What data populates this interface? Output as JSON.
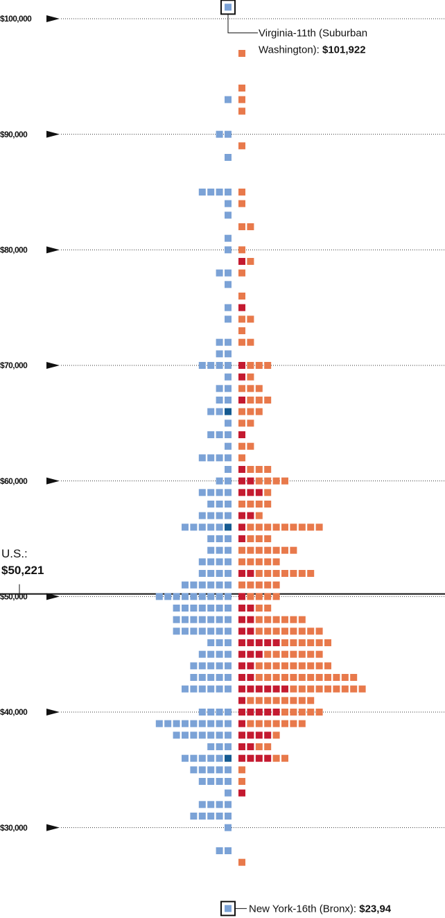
{
  "chart_data": {
    "type": "dot-stack",
    "ylim": [
      22000,
      102000
    ],
    "yticks": [
      {
        "value": 100000,
        "label": "$100,000"
      },
      {
        "value": 90000,
        "label": "$90,000"
      },
      {
        "value": 80000,
        "label": "$80,000"
      },
      {
        "value": 70000,
        "label": "$70,000"
      },
      {
        "value": 60000,
        "label": "$60,000"
      },
      {
        "value": 50000,
        "label": "$50,000"
      },
      {
        "value": 40000,
        "label": "$40,000"
      },
      {
        "value": 30000,
        "label": "$30,000"
      }
    ],
    "colors": {
      "left": "#7ba2d6",
      "left_dark": "#155a91",
      "right_dark": "#c41a30",
      "right": "#e8794b"
    },
    "median": {
      "label": "U.S.:",
      "value": 50221,
      "value_label": "$50,221"
    },
    "annotations": [
      {
        "text": "Virginia-11th (Suburban",
        "text2": "Washington):",
        "value_label": "$101,922"
      },
      {
        "text": "New York-16th (Bronx):",
        "value_label": "$23,94"
      }
    ],
    "rows": [
      {
        "value": 101000,
        "left": 1
      },
      {
        "value": 97000,
        "right": 1
      },
      {
        "value": 94000,
        "right": 1
      },
      {
        "value": 93000,
        "left": 1,
        "right": 1
      },
      {
        "value": 92000,
        "right": 1
      },
      {
        "value": 90000,
        "left": 2
      },
      {
        "value": 89000,
        "right": 1
      },
      {
        "value": 88000,
        "left": 1
      },
      {
        "value": 85000,
        "left": 4,
        "right": 1
      },
      {
        "value": 84000,
        "left": 1,
        "right": 1
      },
      {
        "value": 83000,
        "left": 1
      },
      {
        "value": 82000,
        "right": 2
      },
      {
        "value": 81000,
        "left": 1
      },
      {
        "value": 80000,
        "left": 1,
        "right": 1
      },
      {
        "value": 79000,
        "right_dark": 1,
        "right": 1
      },
      {
        "value": 78000,
        "left": 2,
        "right": 1
      },
      {
        "value": 77000,
        "left": 1
      },
      {
        "value": 76000,
        "right": 1
      },
      {
        "value": 75000,
        "left": 1,
        "right_dark": 1
      },
      {
        "value": 74000,
        "left": 1,
        "right": 2
      },
      {
        "value": 73000,
        "right": 1
      },
      {
        "value": 72000,
        "left": 2,
        "right": 2
      },
      {
        "value": 71000,
        "left": 2
      },
      {
        "value": 70000,
        "left": 4,
        "right_dark": 1,
        "right": 3
      },
      {
        "value": 69000,
        "left": 1,
        "right_dark": 1,
        "right": 1
      },
      {
        "value": 68000,
        "left": 2,
        "right": 3
      },
      {
        "value": 67000,
        "left": 2,
        "right_dark": 1,
        "right": 3
      },
      {
        "value": 66000,
        "left": 2,
        "left_dark": 1,
        "right": 3
      },
      {
        "value": 65000,
        "left": 1,
        "right": 2
      },
      {
        "value": 64000,
        "left": 3,
        "right_dark": 1
      },
      {
        "value": 63000,
        "left": 1,
        "right": 2
      },
      {
        "value": 62000,
        "left": 4,
        "right": 1
      },
      {
        "value": 61000,
        "left": 1,
        "right_dark": 1,
        "right": 3
      },
      {
        "value": 60000,
        "left": 2,
        "right_dark": 2,
        "right": 4
      },
      {
        "value": 59000,
        "left": 4,
        "right_dark": 3,
        "right": 1
      },
      {
        "value": 58000,
        "left": 3,
        "right": 4
      },
      {
        "value": 57000,
        "left": 4,
        "right_dark": 2,
        "right": 1
      },
      {
        "value": 56000,
        "left": 5,
        "left_dark": 1,
        "right_dark": 1,
        "right": 9
      },
      {
        "value": 55000,
        "left": 3,
        "right_dark": 1,
        "right": 3
      },
      {
        "value": 54000,
        "left": 3,
        "right": 7
      },
      {
        "value": 53000,
        "left": 4,
        "right": 5
      },
      {
        "value": 52000,
        "left": 4,
        "right_dark": 2,
        "right": 7
      },
      {
        "value": 51000,
        "left": 6,
        "right": 5
      },
      {
        "value": 50000,
        "left": 9,
        "right_dark": 1,
        "right": 4
      },
      {
        "value": 49000,
        "left": 7,
        "right_dark": 2,
        "right": 2
      },
      {
        "value": 48000,
        "left": 7,
        "right_dark": 2,
        "right": 6
      },
      {
        "value": 47000,
        "left": 7,
        "right_dark": 2,
        "right": 8
      },
      {
        "value": 46000,
        "left": 3,
        "right_dark": 5,
        "right": 6
      },
      {
        "value": 45000,
        "left": 4,
        "right_dark": 3,
        "right": 7
      },
      {
        "value": 44000,
        "left": 5,
        "right_dark": 2,
        "right": 9
      },
      {
        "value": 43000,
        "left": 5,
        "right_dark": 2,
        "right": 12
      },
      {
        "value": 42000,
        "left": 6,
        "right_dark": 6,
        "right": 9
      },
      {
        "value": 41000,
        "right_dark": 1,
        "right": 8
      },
      {
        "value": 40000,
        "left": 4,
        "right_dark": 5,
        "right": 5
      },
      {
        "value": 39000,
        "left": 9,
        "right_dark": 1,
        "right": 7
      },
      {
        "value": 38000,
        "left": 7,
        "right_dark": 4,
        "right": 1
      },
      {
        "value": 37000,
        "left": 3,
        "right_dark": 2,
        "right": 2
      },
      {
        "value": 36000,
        "left": 5,
        "left_dark": 1,
        "right_dark": 4,
        "right": 2
      },
      {
        "value": 35000,
        "left": 5,
        "right": 1
      },
      {
        "value": 34000,
        "left": 4,
        "right": 1
      },
      {
        "value": 33000,
        "left": 1,
        "right_dark": 1
      },
      {
        "value": 32000,
        "left": 4
      },
      {
        "value": 31000,
        "left": 5
      },
      {
        "value": 30000,
        "left": 1
      },
      {
        "value": 28000,
        "left": 2
      },
      {
        "value": 27000,
        "right": 1
      },
      {
        "value": 23000,
        "left": 1
      }
    ]
  }
}
